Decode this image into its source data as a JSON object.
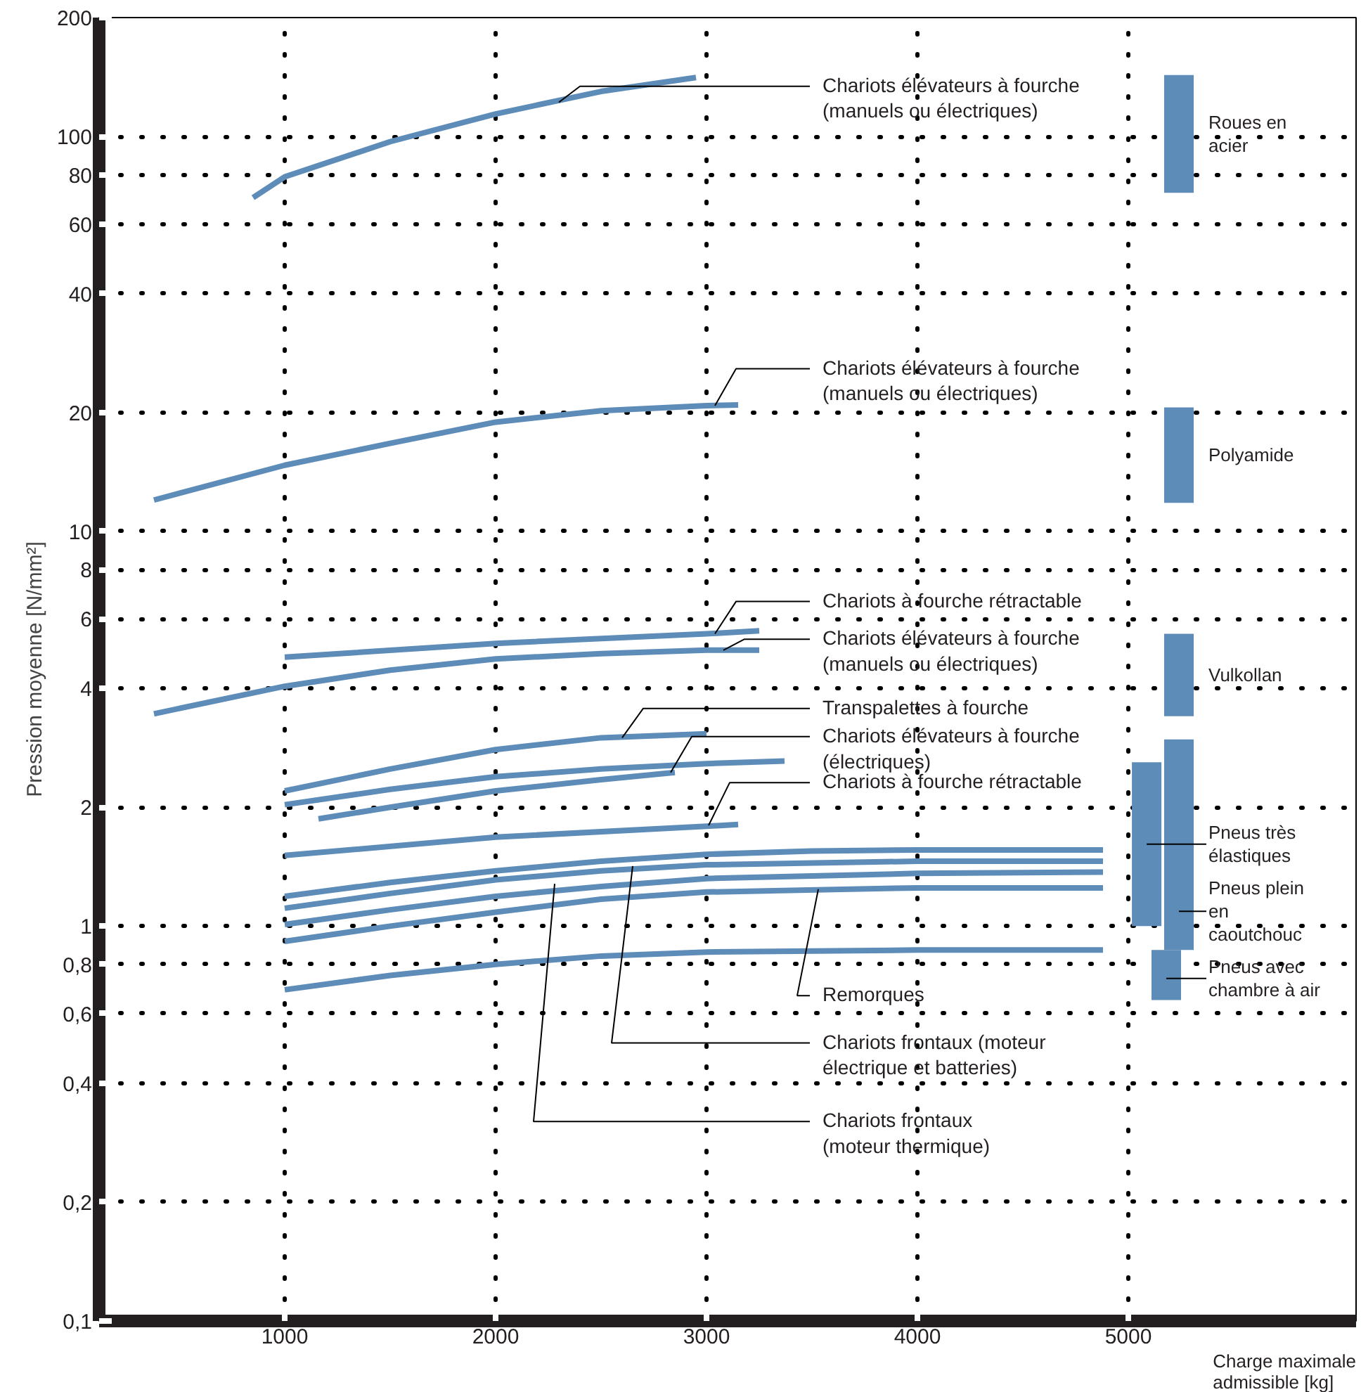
{
  "chart_data": {
    "type": "line",
    "xlabel": "Charge maximale\nadmissible [kg]",
    "ylabel": "Pression moyenne [N/mm²]",
    "log": "y",
    "grid": true,
    "xlim": [
      120,
      6080
    ],
    "xticks": [
      1000,
      2000,
      3000,
      4000,
      5000
    ],
    "ylim": [
      0.1,
      200
    ],
    "yticks": [
      {
        "value": 0.1,
        "label": "0,1"
      },
      {
        "value": 0.2,
        "label": "0,2"
      },
      {
        "value": 0.4,
        "label": "0,4"
      },
      {
        "value": 0.6,
        "label": "0,6"
      },
      {
        "value": 0.8,
        "label": "0,8"
      },
      1,
      2,
      4,
      6,
      8,
      10,
      20,
      40,
      60,
      80,
      100,
      200
    ],
    "series": [
      {
        "color": "#5e8cb9",
        "x": [
          850,
          1000,
          1500,
          2000,
          2500,
          2950
        ],
        "values": [
          70,
          79,
          97,
          114,
          130,
          141
        ]
      },
      {
        "color": "#5e8cb9",
        "x": [
          380,
          1000,
          1500,
          2000,
          2500,
          3000,
          3150
        ],
        "values": [
          12,
          14.7,
          16.7,
          18.9,
          20.2,
          20.8,
          20.9
        ]
      },
      {
        "color": "#5e8cb9",
        "x": [
          1000,
          2000,
          3000,
          3250
        ],
        "values": [
          4.8,
          5.2,
          5.5,
          5.6
        ]
      },
      {
        "color": "#5e8cb9",
        "x": [
          380,
          1000,
          1500,
          2000,
          2500,
          3000,
          3250
        ],
        "values": [
          3.45,
          4.05,
          4.45,
          4.75,
          4.9,
          5.0,
          5.0
        ]
      },
      {
        "color": "#5e8cb9",
        "x": [
          1000,
          1500,
          2000,
          2500,
          3000
        ],
        "values": [
          2.2,
          2.5,
          2.8,
          3.0,
          3.07
        ]
      },
      {
        "color": "#5e8cb9",
        "x": [
          1000,
          1500,
          2000,
          2500,
          3000,
          3370
        ],
        "values": [
          2.03,
          2.22,
          2.39,
          2.5,
          2.58,
          2.62
        ]
      },
      {
        "color": "#5e8cb9",
        "x": [
          1160,
          1500,
          2000,
          2500,
          2850
        ],
        "values": [
          1.87,
          2.0,
          2.2,
          2.35,
          2.45
        ]
      },
      {
        "color": "#5e8cb9",
        "x": [
          1000,
          2000,
          3000,
          3150
        ],
        "values": [
          1.51,
          1.68,
          1.79,
          1.81
        ]
      },
      {
        "color": "#5e8cb9",
        "x": [
          1000,
          1500,
          2000,
          2500,
          3000,
          3500,
          4000,
          4880
        ],
        "values": [
          1.19,
          1.29,
          1.38,
          1.46,
          1.52,
          1.55,
          1.56,
          1.56
        ]
      },
      {
        "color": "#5e8cb9",
        "x": [
          1000,
          1500,
          2000,
          2500,
          3000,
          4000,
          4880
        ],
        "values": [
          1.11,
          1.21,
          1.31,
          1.38,
          1.43,
          1.46,
          1.46
        ]
      },
      {
        "color": "#5e8cb9",
        "x": [
          1000,
          1500,
          2000,
          2500,
          3000,
          4000,
          4880
        ],
        "values": [
          1.01,
          1.1,
          1.19,
          1.26,
          1.32,
          1.36,
          1.37
        ]
      },
      {
        "color": "#5e8cb9",
        "x": [
          1000,
          1500,
          2000,
          2500,
          3000,
          4000,
          4880
        ],
        "values": [
          0.915,
          1.0,
          1.085,
          1.17,
          1.22,
          1.25,
          1.25
        ]
      },
      {
        "color": "#5e8cb9",
        "x": [
          1000,
          1500,
          2000,
          2500,
          3000,
          4000,
          4880
        ],
        "values": [
          0.69,
          0.75,
          0.8,
          0.84,
          0.86,
          0.87,
          0.87
        ]
      },
      {
        "type": "bar",
        "name": "Roues en\nacier",
        "color": "#5e8cb9",
        "x": [
          5240
        ],
        "base": [
          72
        ],
        "values": [
          71
        ]
      },
      {
        "type": "bar",
        "name": "Polyamide",
        "color": "#5e8cb9",
        "x": [
          5240
        ],
        "base": [
          11.8
        ],
        "values": [
          8.8
        ]
      },
      {
        "type": "bar",
        "name": "Vulkollan",
        "color": "#5e8cb9",
        "x": [
          5240
        ],
        "base": [
          3.4
        ],
        "values": [
          2.1
        ]
      },
      {
        "type": "bar",
        "name": "Pneus très\nélastiques",
        "color": "#5e8cb9",
        "x": [
          5087
        ],
        "base": [
          1.0
        ],
        "values": [
          1.6
        ]
      },
      {
        "type": "bar",
        "name": "Pneus plein\nen\ncaoutchouc",
        "color": "#5e8cb9",
        "x": [
          5240
        ],
        "base": [
          0.87
        ],
        "values": [
          2.1
        ]
      },
      {
        "type": "bar",
        "name": "Pneus avec\nchambre à air",
        "color": "#5e8cb9",
        "x": [
          5180
        ],
        "base": [
          0.65
        ],
        "values": [
          0.22
        ]
      }
    ],
    "annotations": [
      {
        "text": "Chariots élévateurs à fourche\n(manuels ou électriques)",
        "x": 2300,
        "y": 122
      },
      {
        "text": "Chariots élévateurs à fourche\n(manuels ou électriques)",
        "x": 3040,
        "y": 20.8
      },
      {
        "text": "Chariots à fourche rétractable",
        "x": 3040,
        "y": 5.5
      },
      {
        "text": "Chariots élévateurs à fourche\n(manuels ou électriques)",
        "x": 3080,
        "y": 5.0
      },
      {
        "text": "Transpalettes à fourche",
        "x": 2600,
        "y": 3.0
      },
      {
        "text": "Chariots élévateurs à fourche\n(électriques)",
        "x": 2830,
        "y": 2.45
      },
      {
        "text": "Chariots à fourche rétractable",
        "x": 3010,
        "y": 1.8
      },
      {
        "text": "Remorques",
        "x": 3530,
        "y": 1.24
      },
      {
        "text": "Chariots frontaux (moteur\nélectrique et batteries)",
        "x": 2650,
        "y": 1.42
      },
      {
        "text": "Chariots frontaux\n(moteur thermique)",
        "x": 2280,
        "y": 1.28
      }
    ]
  }
}
